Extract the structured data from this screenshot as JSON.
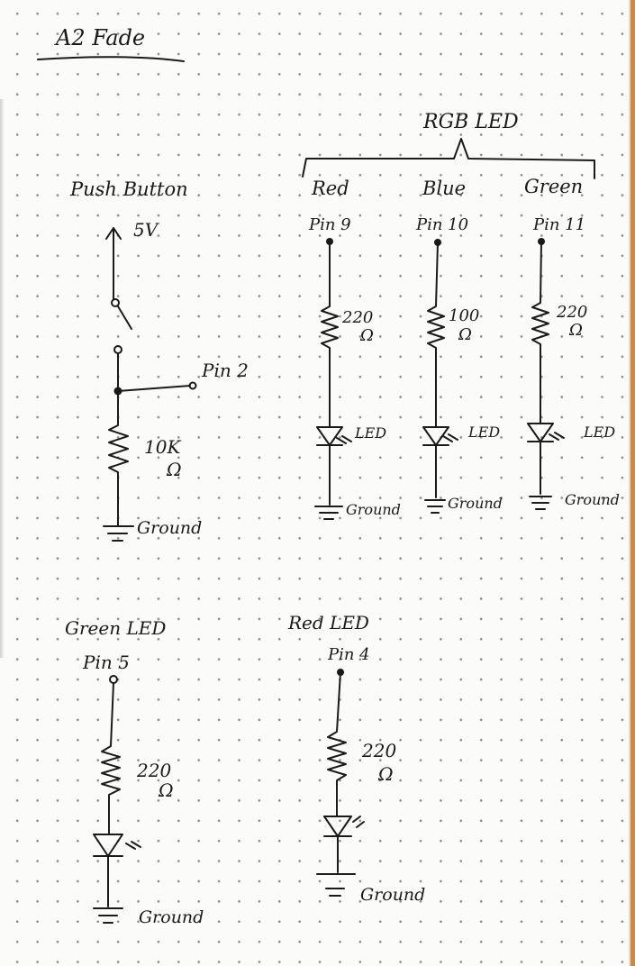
{
  "title": "A2 Fade",
  "push_button": {
    "label": "Push Button",
    "supply": "5V",
    "pin": "Pin 2",
    "resistor": "10K",
    "unit": "Ω",
    "ground": "Ground"
  },
  "rgb_led": {
    "label": "RGB LED",
    "channels": [
      {
        "color": "Red",
        "pin": "Pin 9",
        "resistor": "220",
        "unit": "Ω",
        "led": "LED",
        "ground": "Ground"
      },
      {
        "color": "Blue",
        "pin": "Pin 10",
        "resistor": "100",
        "unit": "Ω",
        "led": "LED",
        "ground": "Ground"
      },
      {
        "color": "Green",
        "pin": "Pin 11",
        "resistor": "220",
        "unit": "Ω",
        "led": "LED",
        "ground": "Ground"
      }
    ]
  },
  "green_led": {
    "label": "Green LED",
    "pin": "Pin 5",
    "resistor": "220",
    "unit": "Ω",
    "ground": "Ground"
  },
  "red_led": {
    "label": "Red LED",
    "pin": "Pin 4",
    "resistor": "220",
    "unit": "Ω",
    "ground": "Ground"
  }
}
